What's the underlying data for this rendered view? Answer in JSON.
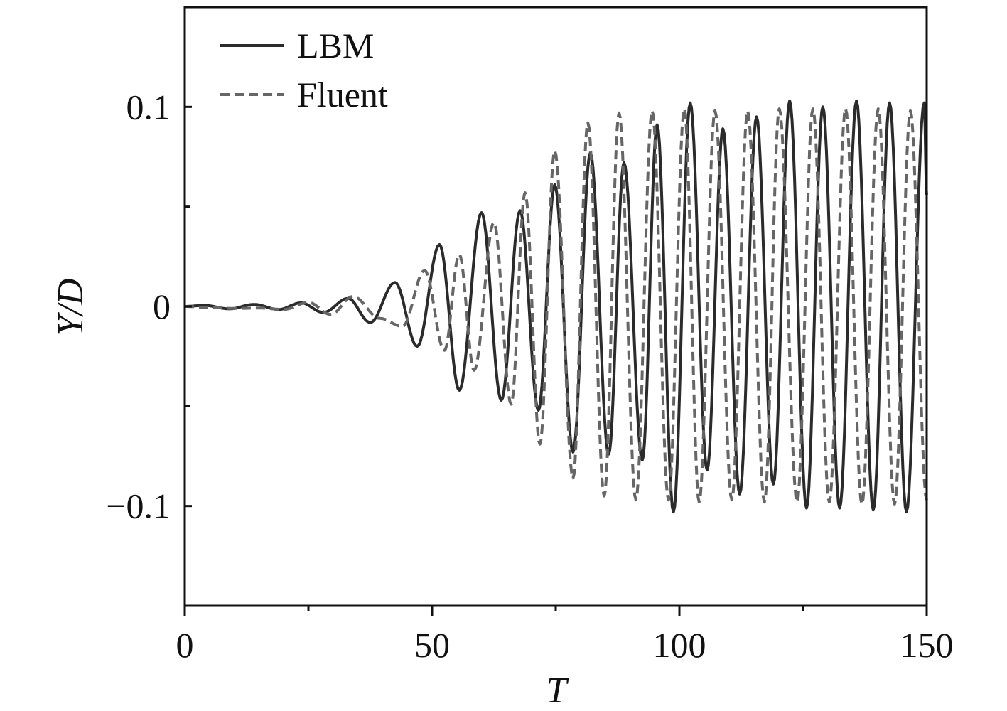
{
  "chart_data": {
    "type": "line",
    "title": "",
    "xlabel": "T",
    "ylabel": "Y/D",
    "xlim": [
      0,
      150
    ],
    "ylim": [
      -0.15,
      0.15
    ],
    "x_major_ticks": [
      0,
      50,
      100,
      150
    ],
    "x_tick_labels": [
      "0",
      "50",
      "100",
      "150"
    ],
    "y_major_ticks": [
      -0.1,
      0,
      0.1
    ],
    "y_tick_labels": [
      "−0.1",
      "0",
      "0.1"
    ],
    "x_minor_step": 25,
    "y_minor_step": 0.05,
    "grid": false,
    "legend_position": "top-left",
    "series": [
      {
        "name": "LBM",
        "color": "#2b2b2b",
        "dash": "solid",
        "peaks": [
          [
            0,
            0
          ],
          [
            4,
            0.0005
          ],
          [
            9,
            -0.0012
          ],
          [
            14,
            0.001
          ],
          [
            19,
            -0.0015
          ],
          [
            23.5,
            0.0018
          ],
          [
            28,
            -0.003
          ],
          [
            33,
            0.004
          ],
          [
            37.5,
            -0.008
          ],
          [
            42.5,
            0.012
          ],
          [
            47,
            -0.02
          ],
          [
            51.5,
            0.031
          ],
          [
            55.5,
            -0.042
          ],
          [
            60,
            0.047
          ],
          [
            64,
            -0.047
          ],
          [
            67.8,
            0.048
          ],
          [
            71.5,
            -0.052
          ],
          [
            74.8,
            0.061
          ],
          [
            78.5,
            -0.073
          ],
          [
            82,
            0.077
          ],
          [
            85.7,
            -0.074
          ],
          [
            88.8,
            0.072
          ],
          [
            92.5,
            -0.077
          ],
          [
            95.5,
            0.091
          ],
          [
            98.8,
            -0.103
          ],
          [
            102.2,
            0.102
          ],
          [
            105.6,
            -0.082
          ],
          [
            108.8,
            0.089
          ],
          [
            112.2,
            -0.094
          ],
          [
            115.6,
            0.095
          ],
          [
            119,
            -0.089
          ],
          [
            122.3,
            0.103
          ],
          [
            125.7,
            -0.101
          ],
          [
            129,
            0.1
          ],
          [
            132.4,
            -0.101
          ],
          [
            135.8,
            0.103
          ],
          [
            139.2,
            -0.102
          ],
          [
            142.5,
            0.102
          ],
          [
            145.9,
            -0.103
          ],
          [
            149.5,
            0.102
          ],
          [
            150,
            0.056
          ]
        ]
      },
      {
        "name": "Fluent",
        "color": "#666666",
        "dash": "dashed",
        "peaks": [
          [
            0,
            0
          ],
          [
            5,
            -0.0005
          ],
          [
            10,
            -0.001
          ],
          [
            15,
            -0.0008
          ],
          [
            20,
            -0.0015
          ],
          [
            25,
            0.002
          ],
          [
            29.5,
            -0.004
          ],
          [
            34,
            0.005
          ],
          [
            39.5,
            -0.006
          ],
          [
            44,
            -0.01
          ],
          [
            48.5,
            0.018
          ],
          [
            52.5,
            -0.022
          ],
          [
            55.5,
            0.026
          ],
          [
            58.5,
            -0.032
          ],
          [
            62.5,
            0.042
          ],
          [
            66,
            -0.049
          ],
          [
            68.8,
            0.057
          ],
          [
            71.8,
            -0.069
          ],
          [
            74.8,
            0.078
          ],
          [
            78.5,
            -0.086
          ],
          [
            81.5,
            0.092
          ],
          [
            84.8,
            -0.095
          ],
          [
            87.8,
            0.097
          ],
          [
            91.2,
            -0.097
          ],
          [
            94.5,
            0.098
          ],
          [
            97.8,
            -0.097
          ],
          [
            101,
            0.099
          ],
          [
            104,
            -0.098
          ],
          [
            107.2,
            0.098
          ],
          [
            110.6,
            -0.097
          ],
          [
            113.8,
            0.098
          ],
          [
            117.2,
            -0.098
          ],
          [
            120.2,
            0.099
          ],
          [
            123.8,
            -0.098
          ],
          [
            127,
            0.099
          ],
          [
            130.3,
            -0.098
          ],
          [
            133.6,
            0.099
          ],
          [
            136.9,
            -0.099
          ],
          [
            140.2,
            0.099
          ],
          [
            143.5,
            -0.099
          ],
          [
            146.7,
            0.098
          ],
          [
            150,
            -0.097
          ]
        ]
      }
    ]
  }
}
